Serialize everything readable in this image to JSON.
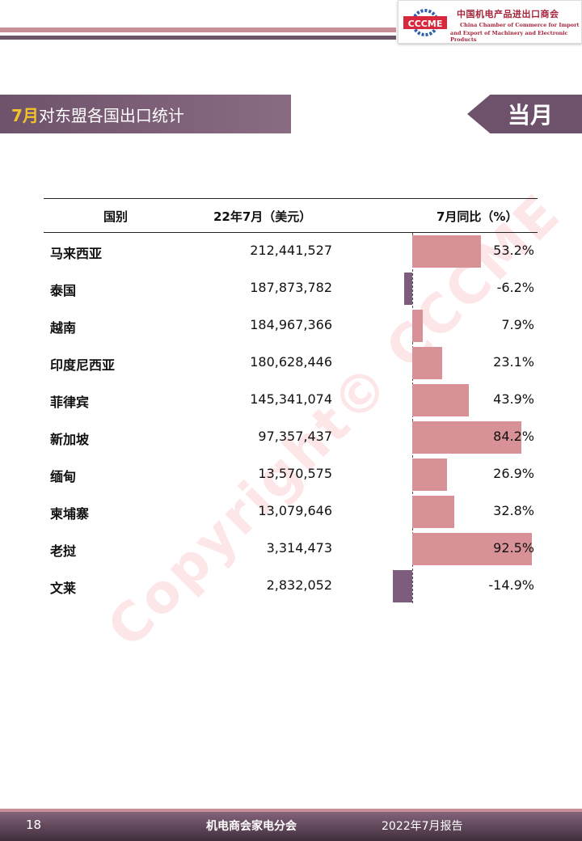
{
  "logo": {
    "mark": "CCCME",
    "cn_name": "中国机电产品进出口商会",
    "en_line1": "China Chamber of Commerce for Import",
    "en_line2": "and Export of Machinery and Electronic Products"
  },
  "title": {
    "month": "7月",
    "text": "对东盟各国出口统计"
  },
  "tag": "当月",
  "watermark": "Copyright© CCCME",
  "table": {
    "headers": [
      "国别",
      "22年7月（美元）",
      "7月同比（%）"
    ],
    "rows": [
      {
        "country": "马来西亚",
        "value": "212,441,527",
        "yoy": "53.2%"
      },
      {
        "country": "泰国",
        "value": "187,873,782",
        "yoy": "-6.2%"
      },
      {
        "country": "越南",
        "value": "184,967,366",
        "yoy": "7.9%"
      },
      {
        "country": "印度尼西亚",
        "value": "180,628,446",
        "yoy": "23.1%"
      },
      {
        "country": "菲律宾",
        "value": "145,341,074",
        "yoy": "43.9%"
      },
      {
        "country": "新加坡",
        "value": "97,357,437",
        "yoy": "84.2%"
      },
      {
        "country": "缅甸",
        "value": "13,570,575",
        "yoy": "26.9%"
      },
      {
        "country": "柬埔寨",
        "value": "13,079,646",
        "yoy": "32.8%"
      },
      {
        "country": "老挝",
        "value": "3,314,473",
        "yoy": "92.5%"
      },
      {
        "country": "文莱",
        "value": "2,832,052",
        "yoy": "-14.9%"
      }
    ]
  },
  "chart_data": {
    "type": "bar",
    "categories": [
      "马来西亚",
      "泰国",
      "越南",
      "印度尼西亚",
      "菲律宾",
      "新加坡",
      "缅甸",
      "柬埔寨",
      "老挝",
      "文莱"
    ],
    "values": [
      53.2,
      -6.2,
      7.9,
      23.1,
      43.9,
      84.2,
      26.9,
      32.8,
      92.5,
      -14.9
    ],
    "colors": {
      "positive": "#d79197",
      "negative": "#7d5c7d"
    }
  },
  "footer": {
    "page": "18",
    "org": "机电商会家电分会",
    "date": "2022年7月报告"
  }
}
